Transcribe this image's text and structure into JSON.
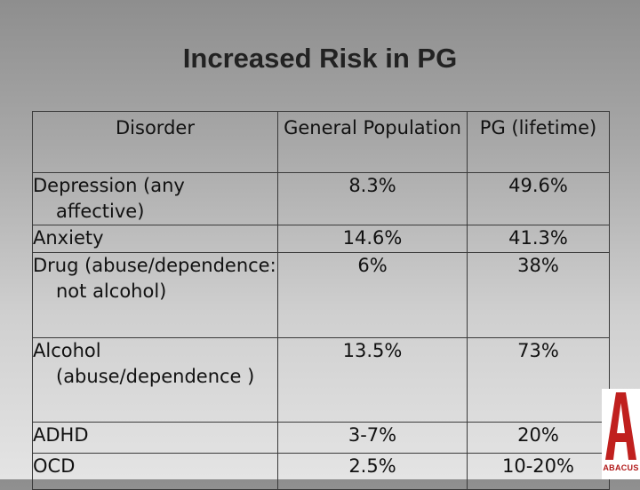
{
  "slide": {
    "title": "Increased Risk in PG"
  },
  "table": {
    "headers": [
      "Disorder",
      "General Population",
      "PG (lifetime)"
    ],
    "rows": [
      {
        "disorder": "Depression (any affective)",
        "general": "8.3%",
        "pg": "49.6%"
      },
      {
        "disorder": "Anxiety",
        "general": "14.6%",
        "pg": "41.3%"
      },
      {
        "disorder": "Drug (abuse/dependence: not alcohol)",
        "general": "6%",
        "pg": "38%"
      },
      {
        "disorder": "Alcohol (abuse/dependence )",
        "general": "13.5%",
        "pg": "73%"
      },
      {
        "disorder": "ADHD",
        "general": "3-7%",
        "pg": "20%"
      },
      {
        "disorder": "OCD",
        "general": "2.5%",
        "pg": "10-20%"
      }
    ]
  },
  "logo": {
    "letter": "A",
    "brand": "ABACUS",
    "color": "#c0201e",
    "icon": "abacus-logo-icon"
  }
}
